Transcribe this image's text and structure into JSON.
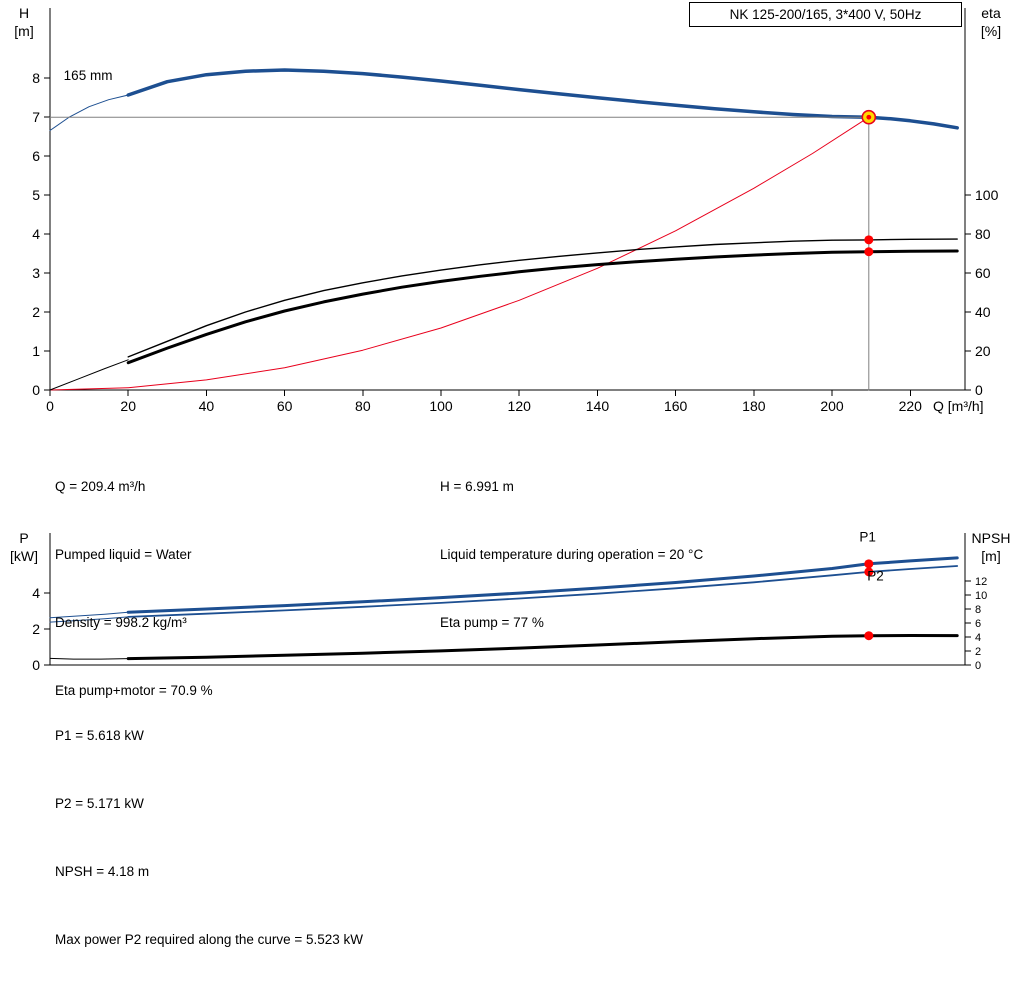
{
  "colors": {
    "curve_blue": "#1d4f91",
    "curve_black": "#000000",
    "system_red": "#e8001c",
    "dot_red": "#ff0000",
    "op_fill": "#ffd800",
    "op_stroke": "#e8001c",
    "guide_gray": "#808080"
  },
  "info_top_left": [
    "Q = 209.4 m³/h",
    "Pumped liquid = Water",
    "Density = 998.2 kg/m³",
    "Eta pump+motor = 70.9 %"
  ],
  "info_top_right": [
    "H = 6.991 m",
    "Liquid temperature during operation = 20 °C",
    "Eta pump = 77 %"
  ],
  "info_bottom": [
    "P1 = 5.618 kW",
    "P2 = 5.171 kW",
    "NPSH = 4.18 m",
    "Max power P2 required along the curve = 5.523 kW"
  ],
  "chart_data": [
    {
      "type": "line",
      "title": "NK 125-200/165, 3*400 V, 50Hz",
      "x": {
        "label": "Q [m³/h]",
        "min": 0,
        "max": 234,
        "ticks": [
          0,
          20,
          40,
          60,
          80,
          100,
          120,
          140,
          160,
          180,
          200,
          220
        ]
      },
      "y": {
        "label_lines": [
          "H",
          "[m]"
        ],
        "min": 0,
        "max": 9.79,
        "ticks": [
          0,
          1,
          2,
          3,
          4,
          5,
          6,
          7,
          8
        ]
      },
      "y2": {
        "label_lines": [
          "eta",
          "[%]"
        ],
        "min": 0,
        "max": 195.9,
        "ticks": [
          0,
          20,
          40,
          60,
          80,
          100
        ]
      },
      "series": [
        {
          "name": "head-curve-ext",
          "axis": "y",
          "color": "#1d4f91",
          "width": 1,
          "points": [
            [
              0,
              6.65
            ],
            [
              5,
              7.0
            ],
            [
              10,
              7.26
            ],
            [
              15,
              7.44
            ],
            [
              20,
              7.56
            ]
          ]
        },
        {
          "name": "head-curve",
          "axis": "y",
          "color": "#1d4f91",
          "width": 3.5,
          "points": [
            [
              20,
              7.56
            ],
            [
              30,
              7.9
            ],
            [
              40,
              8.08
            ],
            [
              50,
              8.17
            ],
            [
              60,
              8.2
            ],
            [
              70,
              8.17
            ],
            [
              80,
              8.11
            ],
            [
              90,
              8.02
            ],
            [
              100,
              7.92
            ],
            [
              110,
              7.81
            ],
            [
              120,
              7.7
            ],
            [
              130,
              7.59
            ],
            [
              140,
              7.49
            ],
            [
              150,
              7.39
            ],
            [
              160,
              7.3
            ],
            [
              170,
              7.21
            ],
            [
              180,
              7.13
            ],
            [
              190,
              7.06
            ],
            [
              200,
              7.01
            ],
            [
              209.4,
              6.991
            ],
            [
              215,
              6.95
            ],
            [
              220,
              6.9
            ],
            [
              226,
              6.82
            ],
            [
              232,
              6.72
            ]
          ]
        },
        {
          "name": "system-curve",
          "axis": "y",
          "color": "#e8001c",
          "width": 1,
          "points": [
            [
              0,
              0
            ],
            [
              20,
              0.06
            ],
            [
              40,
              0.26
            ],
            [
              60,
              0.57
            ],
            [
              80,
              1.02
            ],
            [
              100,
              1.59
            ],
            [
              120,
              2.3
            ],
            [
              140,
              3.12
            ],
            [
              160,
              4.08
            ],
            [
              180,
              5.17
            ],
            [
              195,
              6.06
            ],
            [
              209.4,
              6.991
            ]
          ]
        },
        {
          "name": "eta-ext",
          "axis": "y2",
          "color": "#000000",
          "width": 1,
          "points": [
            [
              0,
              0
            ],
            [
              7,
              5.5
            ],
            [
              14,
              11
            ],
            [
              20,
              15.5
            ]
          ]
        },
        {
          "name": "eta-pump-curve",
          "axis": "y2",
          "color": "#000000",
          "width": 1.4,
          "points": [
            [
              20,
              17
            ],
            [
              30,
              25
            ],
            [
              40,
              33
            ],
            [
              50,
              40
            ],
            [
              60,
              46
            ],
            [
              70,
              51
            ],
            [
              80,
              55
            ],
            [
              90,
              58.5
            ],
            [
              100,
              61.5
            ],
            [
              110,
              64.2
            ],
            [
              120,
              66.5
            ],
            [
              130,
              68.5
            ],
            [
              140,
              70.3
            ],
            [
              150,
              72
            ],
            [
              160,
              73.4
            ],
            [
              170,
              74.6
            ],
            [
              180,
              75.5
            ],
            [
              190,
              76.3
            ],
            [
              200,
              76.8
            ],
            [
              209.4,
              77
            ],
            [
              220,
              77.3
            ],
            [
              232,
              77.4
            ]
          ]
        },
        {
          "name": "eta-pump-motor-curve",
          "axis": "y2",
          "color": "#000000",
          "width": 3,
          "points": [
            [
              20,
              14
            ],
            [
              30,
              21.5
            ],
            [
              40,
              28.5
            ],
            [
              50,
              35
            ],
            [
              60,
              40.5
            ],
            [
              70,
              45.2
            ],
            [
              80,
              49.2
            ],
            [
              90,
              52.7
            ],
            [
              100,
              55.7
            ],
            [
              110,
              58.3
            ],
            [
              120,
              60.6
            ],
            [
              130,
              62.6
            ],
            [
              140,
              64.3
            ],
            [
              150,
              65.8
            ],
            [
              160,
              67.1
            ],
            [
              170,
              68.2
            ],
            [
              180,
              69.2
            ],
            [
              190,
              70
            ],
            [
              200,
              70.6
            ],
            [
              209.4,
              70.9
            ],
            [
              220,
              71.2
            ],
            [
              232,
              71.3
            ]
          ]
        },
        {
          "name": "head-guide-line",
          "axis": "y",
          "color": "#808080",
          "width": 1,
          "points": [
            [
              0,
              6.991
            ],
            [
              209.4,
              6.991
            ]
          ]
        },
        {
          "name": "flow-guide-line",
          "axis": "y",
          "color": "#808080",
          "width": 1,
          "points": [
            [
              209.4,
              6.991
            ],
            [
              209.4,
              0
            ]
          ]
        }
      ],
      "markers": [
        {
          "name": "eta-pump-point",
          "x": 209.4,
          "y": 77,
          "axis": "y2",
          "style": "dot"
        },
        {
          "name": "eta-pump-motor-point",
          "x": 209.4,
          "y": 70.9,
          "axis": "y2",
          "style": "dot"
        },
        {
          "name": "duty-point",
          "x": 209.4,
          "y": 6.991,
          "axis": "y",
          "style": "op"
        }
      ],
      "annotations": [
        {
          "name": "impeller-diameter-label",
          "text": "165 mm",
          "x": 3.5,
          "y": 7.95,
          "axis": "y",
          "color": "#000000"
        }
      ]
    },
    {
      "type": "line",
      "x": {
        "min": 0,
        "max": 234,
        "ticks": []
      },
      "y": {
        "label_lines": [
          "P",
          "[kW]"
        ],
        "min": 0,
        "max": 7.33,
        "ticks": [
          0,
          2,
          4
        ]
      },
      "y2": {
        "label_lines": [
          "NPSH",
          "[m]"
        ],
        "min": 0,
        "max": 18.86,
        "ticks": [
          0,
          2,
          4,
          6,
          8,
          10,
          12
        ],
        "tick_font": 11
      },
      "series": [
        {
          "name": "p1-curve-ext",
          "axis": "y",
          "color": "#1d4f91",
          "width": 1,
          "points": [
            [
              0,
              2.62
            ],
            [
              7,
              2.72
            ],
            [
              14,
              2.82
            ],
            [
              20,
              2.93
            ]
          ]
        },
        {
          "name": "p1-curve",
          "axis": "y",
          "color": "#1d4f91",
          "width": 3,
          "points": [
            [
              20,
              2.93
            ],
            [
              40,
              3.11
            ],
            [
              60,
              3.3
            ],
            [
              80,
              3.51
            ],
            [
              100,
              3.74
            ],
            [
              120,
              3.99
            ],
            [
              140,
              4.27
            ],
            [
              160,
              4.58
            ],
            [
              180,
              4.94
            ],
            [
              200,
              5.36
            ],
            [
              209.4,
              5.618
            ],
            [
              220,
              5.78
            ],
            [
              232,
              5.95
            ]
          ]
        },
        {
          "name": "p2-curve-ext",
          "axis": "y",
          "color": "#1d4f91",
          "width": 1,
          "points": [
            [
              0,
              2.38
            ],
            [
              7,
              2.47
            ],
            [
              14,
              2.57
            ],
            [
              20,
              2.67
            ]
          ]
        },
        {
          "name": "p2-curve",
          "axis": "y",
          "color": "#1d4f91",
          "width": 1.8,
          "points": [
            [
              20,
              2.67
            ],
            [
              40,
              2.85
            ],
            [
              60,
              3.03
            ],
            [
              80,
              3.23
            ],
            [
              100,
              3.45
            ],
            [
              120,
              3.69
            ],
            [
              140,
              3.96
            ],
            [
              160,
              4.26
            ],
            [
              180,
              4.59
            ],
            [
              200,
              4.98
            ],
            [
              209.4,
              5.171
            ],
            [
              220,
              5.33
            ],
            [
              232,
              5.5
            ]
          ]
        },
        {
          "name": "npsh-curve-ext",
          "axis": "y2",
          "color": "#000000",
          "width": 1,
          "points": [
            [
              0,
              0.95
            ],
            [
              6,
              0.85
            ],
            [
              13,
              0.85
            ],
            [
              20,
              0.92
            ]
          ]
        },
        {
          "name": "npsh-curve",
          "axis": "y2",
          "color": "#000000",
          "width": 3,
          "points": [
            [
              20,
              0.92
            ],
            [
              40,
              1.12
            ],
            [
              60,
              1.38
            ],
            [
              80,
              1.68
            ],
            [
              100,
              2.02
            ],
            [
              120,
              2.42
            ],
            [
              140,
              2.86
            ],
            [
              160,
              3.32
            ],
            [
              180,
              3.76
            ],
            [
              200,
              4.1
            ],
            [
              209.4,
              4.18
            ],
            [
              220,
              4.22
            ],
            [
              232,
              4.2
            ]
          ]
        }
      ],
      "markers": [
        {
          "name": "p1-point",
          "x": 209.4,
          "y": 5.618,
          "axis": "y",
          "style": "dot"
        },
        {
          "name": "p2-point",
          "x": 209.4,
          "y": 5.171,
          "axis": "y",
          "style": "dot"
        },
        {
          "name": "npsh-point",
          "x": 209.4,
          "y": 4.18,
          "axis": "y2",
          "style": "dot"
        }
      ],
      "annotations": [
        {
          "name": "p1-label",
          "text": "P1",
          "x": 207,
          "y": 6.85,
          "axis": "y",
          "color": "#1d4f91"
        },
        {
          "name": "p2-label",
          "text": "P2",
          "x": 209,
          "y": 4.7,
          "axis": "y",
          "color": "#1d4f91"
        }
      ]
    }
  ]
}
